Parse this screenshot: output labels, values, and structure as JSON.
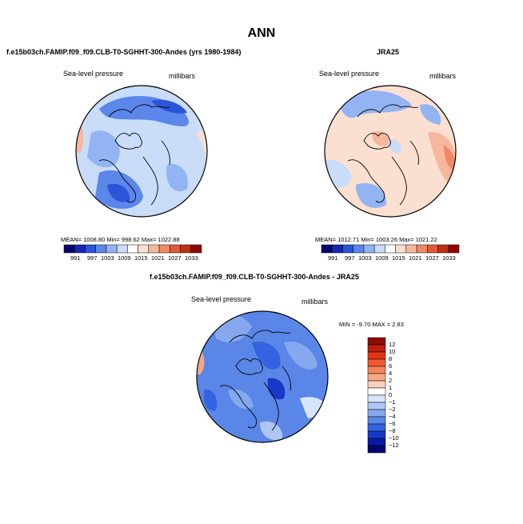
{
  "title": "ANN",
  "panels": [
    {
      "case": "f.e15b03ch.FAMIP.f09_f09.CLB-T0-SGHHT-300-Andes (yrs 1980-1984)",
      "variable": "Sea-level pressure",
      "units": "millibars",
      "stats": "MEAN= 1008.80   Min= 998.62   Max= 1022.88"
    },
    {
      "case": "JRA25",
      "variable": "Sea-level pressure",
      "units": "millibars",
      "stats": "MEAN= 1012.71   Min= 1003.26   Max= 1021.22"
    },
    {
      "case": "f.e15b03ch.FAMIP.f09_f09.CLB-T0-SGHHT-300-Andes - JRA25",
      "variable": "Sea-level pressure",
      "units": "millibars",
      "stats": "MIN =  -9.70 MAX =   2.83"
    }
  ],
  "colorbar_levels": [
    "991",
    "997",
    "1003",
    "1009",
    "1015",
    "1021",
    "1027",
    "1033"
  ],
  "colorbar_colors": [
    "#08066e",
    "#1726b4",
    "#2c54d8",
    "#5b86ea",
    "#93b4f2",
    "#c9dcf8",
    "#ffffff",
    "#fbdfd0",
    "#f7b79c",
    "#f08a66",
    "#e05a38",
    "#c32e16",
    "#8e0a04"
  ],
  "diff_levels": [
    "12",
    "10",
    "8",
    "6",
    "4",
    "2",
    "1",
    "0",
    "−1",
    "−2",
    "−4",
    "−6",
    "−8",
    "−10",
    "−12"
  ],
  "diff_colors": [
    "#8e0a04",
    "#c11e0c",
    "#e03618",
    "#f05a30",
    "#f4845c",
    "#f7a884",
    "#fad0b8",
    "#ffffff",
    "#d8e4fa",
    "#aec6f4",
    "#86a8ee",
    "#5a86e8",
    "#3462e0",
    "#1838c8",
    "#0a1aa4",
    "#06066e"
  ]
}
